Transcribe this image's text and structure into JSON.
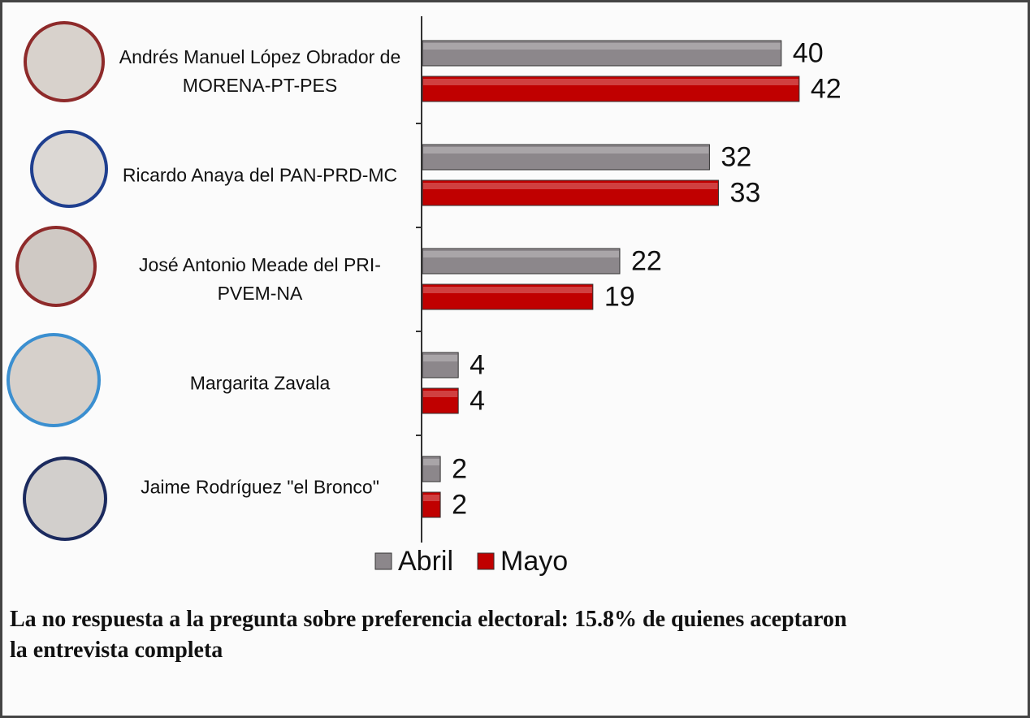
{
  "chart_data": {
    "type": "barh",
    "categories": [
      "Andrés Manuel López Obrador de MORENA-PT-PES",
      "Ricardo Anaya del PAN-PRD-MC",
      "José Antonio Meade del PRI-PVEM-NA",
      "Margarita Zavala",
      "Jaime Rodríguez \"el Bronco\""
    ],
    "series": [
      {
        "name": "Abril",
        "color": "#8c878b",
        "values": [
          40,
          32,
          22,
          4,
          2
        ]
      },
      {
        "name": "Mayo",
        "color": "#c00000",
        "values": [
          42,
          33,
          19,
          4,
          2
        ]
      }
    ],
    "xlim": [
      0,
      67
    ],
    "legend": "bottom",
    "annotation": "La no respuesta a la pregunta sobre preferencia electoral: 15.8% de quienes aceptaron la entrevista completa"
  }
}
